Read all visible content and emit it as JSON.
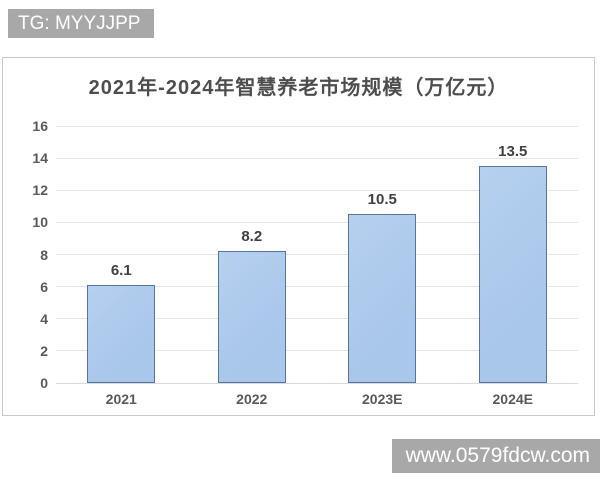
{
  "watermarks": {
    "top": "TG: MYYJJPP",
    "bottom": "www.0579fdcw.com",
    "bg_color": "#a8a8a8",
    "text_color": "#ffffff"
  },
  "chart_data": {
    "type": "bar",
    "title": "2021年-2024年智慧养老市场规模（万亿元）",
    "categories": [
      "2021",
      "2022",
      "2023E",
      "2024E"
    ],
    "values": [
      6.1,
      8.2,
      10.5,
      13.5
    ],
    "data_labels": [
      "6.1",
      "8.2",
      "10.5",
      "13.5"
    ],
    "xlabel": "",
    "ylabel": "",
    "ylim": [
      0,
      16
    ],
    "yticks": [
      0,
      2,
      4,
      6,
      8,
      10,
      12,
      14,
      16
    ],
    "grid": true,
    "legend": "none",
    "bar_fill": "#a9c7ea",
    "bar_fill_light": "#b6d0ef",
    "bar_border": "#54769c",
    "title_color": "#4d4d4d",
    "tick_color": "#595959",
    "gridline_color": "#e4e4e4",
    "panel_border_color": "#c9c9c9"
  }
}
